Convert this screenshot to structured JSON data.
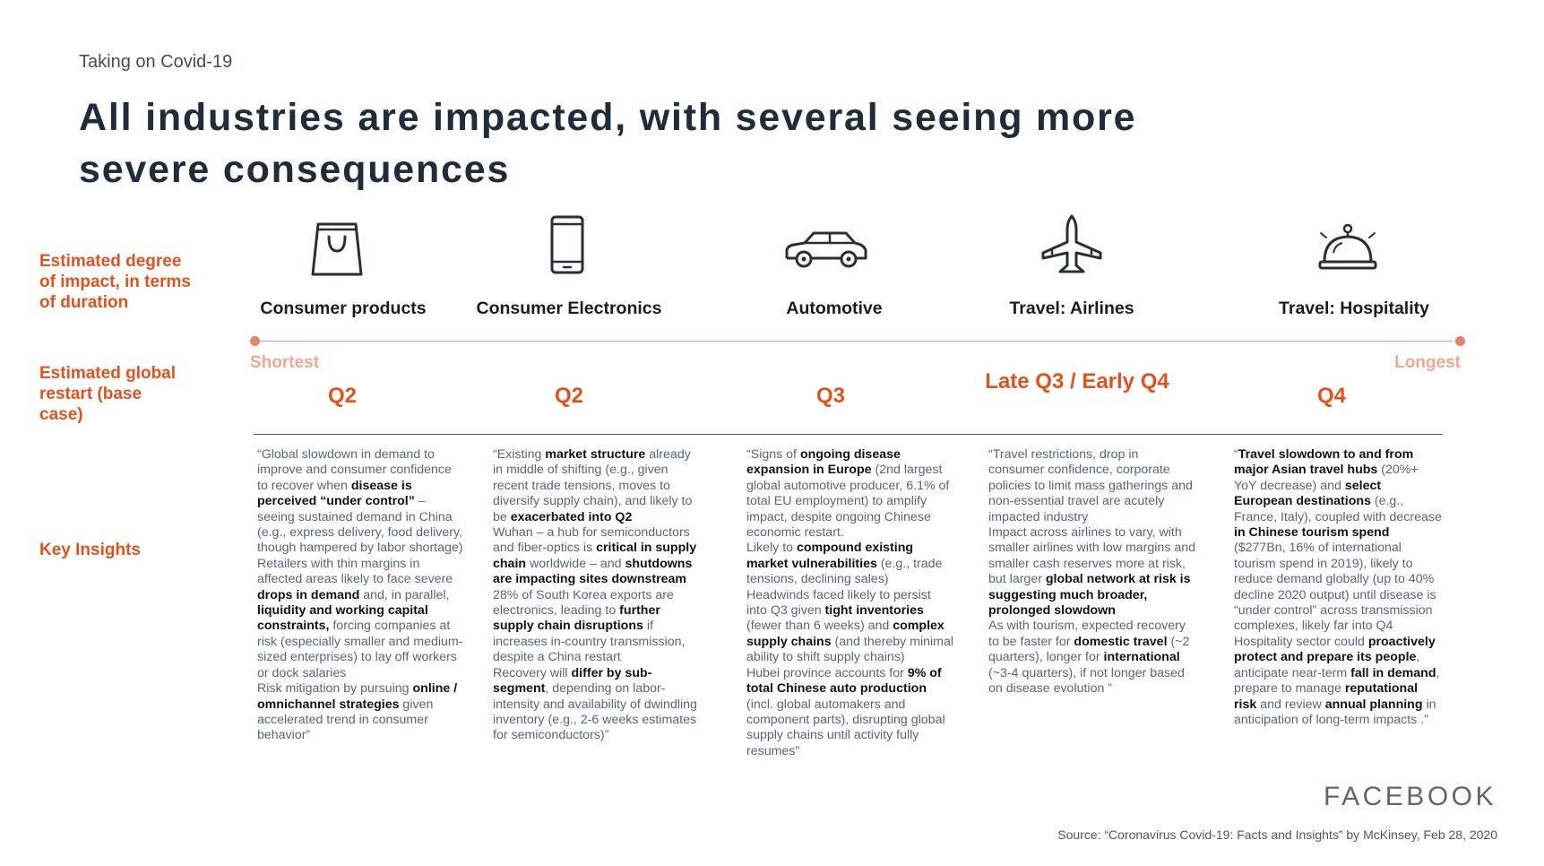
{
  "eyebrow": "Taking on Covid-19",
  "title": "All industries are impacted, with several seeing more severe consequences",
  "row_labels": {
    "impact": "Estimated degree of impact, in terms of duration",
    "restart": "Estimated global restart (base case)",
    "insights": "Key Insights"
  },
  "scale": {
    "left": "Shortest",
    "right": "Longest",
    "accent": "#e0531d"
  },
  "industries": [
    {
      "name": "Consumer products",
      "icon": "shopping-bag-icon",
      "restart": "Q2",
      "insights": [
        {
          "t": "“Global slowdown in demand to improve and consumer confidence to recover when "
        },
        {
          "t": "disease is perceived “under control”",
          "b": true
        },
        {
          "t": " – seeing sustained demand in China (e.g., express delivery, food delivery, though hampered by labor shortage)\nRetailers with thin margins in affected areas likely to face severe "
        },
        {
          "t": "drops in demand",
          "b": true
        },
        {
          "t": " and, in parallel, "
        },
        {
          "t": "liquidity and working capital constraints,",
          "b": true
        },
        {
          "t": " forcing companies at risk (especially smaller and medium-sized enterprises) to lay off workers or dock salaries\nRisk mitigation by pursuing "
        },
        {
          "t": "online / omnichannel strategies",
          "b": true
        },
        {
          "t": " given accelerated trend in consumer behavior”"
        }
      ]
    },
    {
      "name": "Consumer Electronics",
      "icon": "smartphone-icon",
      "restart": "Q2",
      "insights": [
        {
          "t": "“Existing "
        },
        {
          "t": "market structure",
          "b": true
        },
        {
          "t": " already in middle of shifting (e.g., given recent trade tensions, moves to diversify supply chain), and likely to be "
        },
        {
          "t": "exacerbated into Q2",
          "b": true
        },
        {
          "t": "\nWuhan – a hub for semiconductors and fiber-optics is "
        },
        {
          "t": "critical in supply chain",
          "b": true
        },
        {
          "t": " worldwide – and "
        },
        {
          "t": "shutdowns are impacting sites downstream",
          "b": true
        },
        {
          "t": "\n28% of South Korea exports are electronics, leading to "
        },
        {
          "t": "further supply chain disruptions",
          "b": true
        },
        {
          "t": " if increases in-country transmission, despite a China restart\nRecovery will "
        },
        {
          "t": "differ by sub-segment",
          "b": true
        },
        {
          "t": ", depending on labor-intensity and availability of dwindling inventory (e.g., 2-6 weeks estimates for semiconductors)”"
        }
      ]
    },
    {
      "name": "Automotive",
      "icon": "car-icon",
      "restart": "Q3",
      "insights": [
        {
          "t": "“Signs of "
        },
        {
          "t": "ongoing disease expansion in Europe",
          "b": true
        },
        {
          "t": " (2nd largest global automotive producer, 6.1% of total EU employment) to amplify impact, despite ongoing Chinese economic restart.\nLikely to "
        },
        {
          "t": "compound existing market vulnerabilities",
          "b": true
        },
        {
          "t": " (e.g., trade tensions, declining sales)\nHeadwinds faced likely to persist into Q3 given "
        },
        {
          "t": "tight inventories",
          "b": true
        },
        {
          "t": " (fewer than 6 weeks) and "
        },
        {
          "t": "complex supply chains",
          "b": true
        },
        {
          "t": " (and thereby minimal ability to shift supply chains)\nHubei province accounts for "
        },
        {
          "t": "9% of total Chinese auto production",
          "b": true
        },
        {
          "t": " (incl. global automakers and component parts), disrupting global supply chains until activity fully resumes”"
        }
      ]
    },
    {
      "name": "Travel: Airlines",
      "icon": "airplane-icon",
      "restart": "Late Q3 / Early Q4",
      "insights": [
        {
          "t": "“Travel restrictions, drop in consumer confidence, corporate policies to limit mass gatherings and non-essential travel are acutely impacted industry\nImpact across airlines to vary, with smaller airlines with low margins and smaller cash reserves more at risk, but larger "
        },
        {
          "t": "global network at risk is suggesting much broader, prolonged slowdown",
          "b": true
        },
        {
          "t": "\nAs with tourism, expected recovery to be faster for "
        },
        {
          "t": "domestic travel",
          "b": true
        },
        {
          "t": " (~2 quarters), longer for "
        },
        {
          "t": "international",
          "b": true
        },
        {
          "t": " (~3-4 quarters), if not longer based on disease evolution ”"
        }
      ]
    },
    {
      "name": "Travel: Hospitality",
      "icon": "service-bell-icon",
      "restart": "Q4",
      "insights": [
        {
          "t": "“"
        },
        {
          "t": "Travel slowdown to and from major Asian travel hubs",
          "b": true
        },
        {
          "t": " (20%+ YoY decrease) and "
        },
        {
          "t": "select European destinations",
          "b": true
        },
        {
          "t": " (e.g., France, Italy), coupled with decrease "
        },
        {
          "t": "in Chinese tourism spend",
          "b": true
        },
        {
          "t": " ($277Bn, 16% of international tourism spend in 2019), likely to reduce demand globally (up to 40% decline 2020 output) until disease is “under control” across transmission complexes, likely far into Q4\nHospitality sector could "
        },
        {
          "t": "proactively protect and prepare its people",
          "b": true
        },
        {
          "t": ", anticipate near-term "
        },
        {
          "t": "fall in demand",
          "b": true
        },
        {
          "t": ", prepare to manage "
        },
        {
          "t": "reputational risk",
          "b": true
        },
        {
          "t": " and review "
        },
        {
          "t": "annual planning",
          "b": true
        },
        {
          "t": " in anticipation of long-term impacts .”"
        }
      ]
    }
  ],
  "brand": "FACEBOOK",
  "source": "Source: “Coronavirus Covid-19: Facts and Insights” by McKinsey, Feb 28, 2020"
}
